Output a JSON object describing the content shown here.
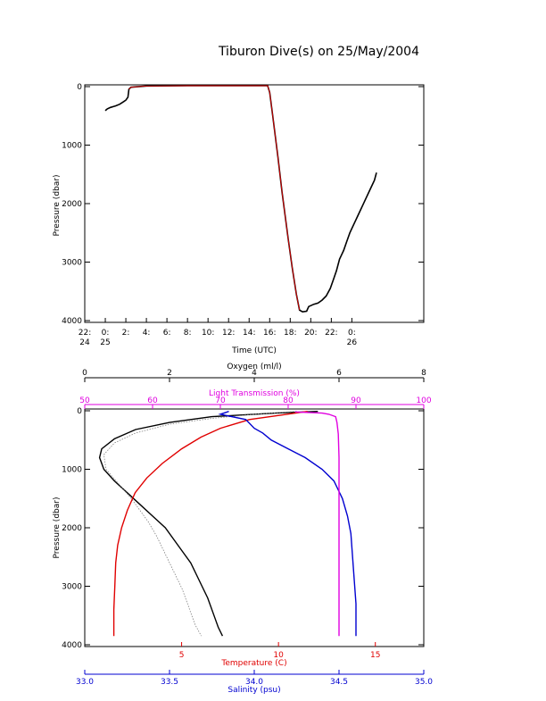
{
  "title": "Tiburon Dive(s) on 25/May/2004",
  "colors": {
    "black": "#000000",
    "red": "#e00000",
    "blue": "#0000d0",
    "magenta": "#e000e0",
    "gray": "#808080"
  },
  "chart_data": [
    {
      "type": "line",
      "name": "dive-profile",
      "xlabel": "Time (UTC)",
      "ylabel": "Pressure (dbar)",
      "x_unit": "hours since 22:00 on 24 May (UTC)",
      "xlim": [
        0,
        33
      ],
      "ylim": [
        4000,
        0
      ],
      "x_ticks": [
        {
          "x": 0,
          "l1": "22:",
          "l2": "24"
        },
        {
          "x": 2,
          "l1": "0:",
          "l2": "25"
        },
        {
          "x": 4,
          "l1": "2:",
          "l2": ""
        },
        {
          "x": 6,
          "l1": "4:",
          "l2": ""
        },
        {
          "x": 8,
          "l1": "6:",
          "l2": ""
        },
        {
          "x": 10,
          "l1": "8:",
          "l2": ""
        },
        {
          "x": 12,
          "l1": "10:",
          "l2": ""
        },
        {
          "x": 14,
          "l1": "12:",
          "l2": ""
        },
        {
          "x": 16,
          "l1": "14:",
          "l2": ""
        },
        {
          "x": 18,
          "l1": "16:",
          "l2": ""
        },
        {
          "x": 20,
          "l1": "18:",
          "l2": ""
        },
        {
          "x": 22,
          "l1": "20:",
          "l2": ""
        },
        {
          "x": 24,
          "l1": "22:",
          "l2": ""
        },
        {
          "x": 26,
          "l1": "0:",
          "l2": "26"
        }
      ],
      "y_ticks": [
        0,
        1000,
        2000,
        3000,
        4000
      ],
      "series": [
        {
          "color": "#000000",
          "points": [
            [
              2.0,
              410
            ],
            [
              2.2,
              380
            ],
            [
              2.5,
              355
            ],
            [
              3.0,
              330
            ],
            [
              3.4,
              300
            ],
            [
              3.8,
              255
            ],
            [
              4.0,
              230
            ],
            [
              4.2,
              180
            ],
            [
              4.3,
              45
            ],
            [
              4.5,
              10
            ],
            [
              6,
              -10
            ],
            [
              10,
              -15
            ],
            [
              14,
              -15
            ],
            [
              16,
              -15
            ],
            [
              17.8,
              -15
            ],
            [
              18.0,
              100
            ],
            [
              18.3,
              500
            ],
            [
              18.8,
              1200
            ],
            [
              19.2,
              1800
            ],
            [
              19.8,
              2600
            ],
            [
              20.2,
              3100
            ],
            [
              20.6,
              3550
            ],
            [
              20.9,
              3820
            ],
            [
              21.2,
              3850
            ],
            [
              21.6,
              3840
            ],
            [
              21.8,
              3760
            ],
            [
              22.3,
              3720
            ],
            [
              22.7,
              3700
            ],
            [
              23.1,
              3650
            ],
            [
              23.5,
              3580
            ],
            [
              23.9,
              3450
            ],
            [
              24.2,
              3300
            ],
            [
              24.5,
              3150
            ],
            [
              24.8,
              2950
            ],
            [
              25.2,
              2800
            ],
            [
              25.5,
              2650
            ],
            [
              25.8,
              2500
            ],
            [
              26.2,
              2350
            ],
            [
              26.6,
              2200
            ],
            [
              27.0,
              2050
            ],
            [
              27.4,
              1900
            ],
            [
              27.8,
              1750
            ],
            [
              28.2,
              1600
            ],
            [
              28.4,
              1470
            ]
          ]
        },
        {
          "color": "#e00000",
          "points": [
            [
              4.3,
              45
            ],
            [
              4.5,
              10
            ],
            [
              6,
              -10
            ],
            [
              10,
              -15
            ],
            [
              14,
              -15
            ],
            [
              16,
              -15
            ],
            [
              17.8,
              -15
            ],
            [
              18.0,
              100
            ],
            [
              18.3,
              500
            ],
            [
              18.8,
              1200
            ],
            [
              19.2,
              1800
            ],
            [
              19.8,
              2600
            ],
            [
              20.2,
              3100
            ],
            [
              20.6,
              3550
            ],
            [
              20.9,
              3820
            ]
          ]
        }
      ]
    },
    {
      "type": "line",
      "name": "cast-profiles",
      "ylabel": "Pressure (dbar)",
      "ylim": [
        4000,
        0
      ],
      "y_ticks": [
        0,
        1000,
        2000,
        3000,
        4000
      ],
      "axes": {
        "oxygen": {
          "label": "Oxygen (ml/l)",
          "range": [
            0,
            8
          ],
          "ticks": [
            0,
            2,
            4,
            6,
            8
          ]
        },
        "transmission": {
          "label": "Light Transmission (%)",
          "range": [
            50,
            100
          ],
          "ticks": [
            50,
            60,
            70,
            80,
            90,
            100
          ]
        },
        "temperature": {
          "label": "Temperature (C)",
          "range": [
            0,
            17.5
          ],
          "ticks": [
            5,
            10,
            15
          ]
        },
        "salinity": {
          "label": "Salinity (psu)",
          "range": [
            33.0,
            35.0
          ],
          "ticks": [
            "33.0",
            "33.5",
            "34.0",
            "34.5",
            "35.0"
          ]
        }
      },
      "series": [
        {
          "axis": "oxygen",
          "color": "#000000",
          "points": [
            [
              5.5,
              10
            ],
            [
              4.5,
              40
            ],
            [
              3.0,
              100
            ],
            [
              2.0,
              200
            ],
            [
              1.2,
              320
            ],
            [
              0.7,
              480
            ],
            [
              0.4,
              650
            ],
            [
              0.35,
              800
            ],
            [
              0.45,
              1000
            ],
            [
              0.7,
              1200
            ],
            [
              1.0,
              1400
            ],
            [
              1.3,
              1600
            ],
            [
              1.6,
              1800
            ],
            [
              1.9,
              2000
            ],
            [
              2.2,
              2300
            ],
            [
              2.5,
              2600
            ],
            [
              2.7,
              2900
            ],
            [
              2.9,
              3200
            ],
            [
              3.05,
              3500
            ],
            [
              3.15,
              3700
            ],
            [
              3.25,
              3850
            ]
          ]
        },
        {
          "axis": "oxygen",
          "color": "#808080",
          "dashed": true,
          "points": [
            [
              5.0,
              10
            ],
            [
              4.0,
              60
            ],
            [
              3.0,
              130
            ],
            [
              2.0,
              230
            ],
            [
              1.2,
              380
            ],
            [
              0.7,
              550
            ],
            [
              0.45,
              750
            ],
            [
              0.5,
              1000
            ],
            [
              0.8,
              1250
            ],
            [
              1.1,
              1500
            ],
            [
              1.3,
              1700
            ],
            [
              1.5,
              1900
            ],
            [
              1.7,
              2150
            ],
            [
              1.9,
              2450
            ],
            [
              2.1,
              2750
            ],
            [
              2.3,
              3050
            ],
            [
              2.45,
              3350
            ],
            [
              2.6,
              3650
            ],
            [
              2.75,
              3850
            ]
          ]
        },
        {
          "axis": "temperature",
          "color": "#e00000",
          "points": [
            [
              11.5,
              10
            ],
            [
              8.5,
              150
            ],
            [
              7.0,
              300
            ],
            [
              6.0,
              450
            ],
            [
              5.0,
              650
            ],
            [
              4.0,
              900
            ],
            [
              3.2,
              1150
            ],
            [
              2.6,
              1400
            ],
            [
              2.2,
              1700
            ],
            [
              1.9,
              2000
            ],
            [
              1.7,
              2300
            ],
            [
              1.6,
              2600
            ],
            [
              1.55,
              3000
            ],
            [
              1.5,
              3400
            ],
            [
              1.5,
              3850
            ]
          ]
        },
        {
          "axis": "salinity",
          "color": "#0000d0",
          "points": [
            [
              33.85,
              10
            ],
            [
              33.8,
              60
            ],
            [
              33.95,
              150
            ],
            [
              34.0,
              300
            ],
            [
              34.05,
              380
            ],
            [
              34.1,
              500
            ],
            [
              34.2,
              650
            ],
            [
              34.3,
              800
            ],
            [
              34.4,
              1000
            ],
            [
              34.47,
              1200
            ],
            [
              34.52,
              1500
            ],
            [
              34.55,
              1800
            ],
            [
              34.57,
              2100
            ],
            [
              34.58,
              2500
            ],
            [
              34.59,
              2900
            ],
            [
              34.6,
              3300
            ],
            [
              34.6,
              3850
            ]
          ]
        },
        {
          "axis": "transmission",
          "color": "#e000e0",
          "points": [
            [
              81,
              20
            ],
            [
              85,
              40
            ],
            [
              86,
              60
            ],
            [
              87,
              100
            ],
            [
              87.2,
              200
            ],
            [
              87.4,
              400
            ],
            [
              87.5,
              800
            ],
            [
              87.5,
              1500
            ],
            [
              87.5,
              2500
            ],
            [
              87.5,
              3500
            ],
            [
              87.5,
              3850
            ]
          ]
        }
      ]
    }
  ]
}
